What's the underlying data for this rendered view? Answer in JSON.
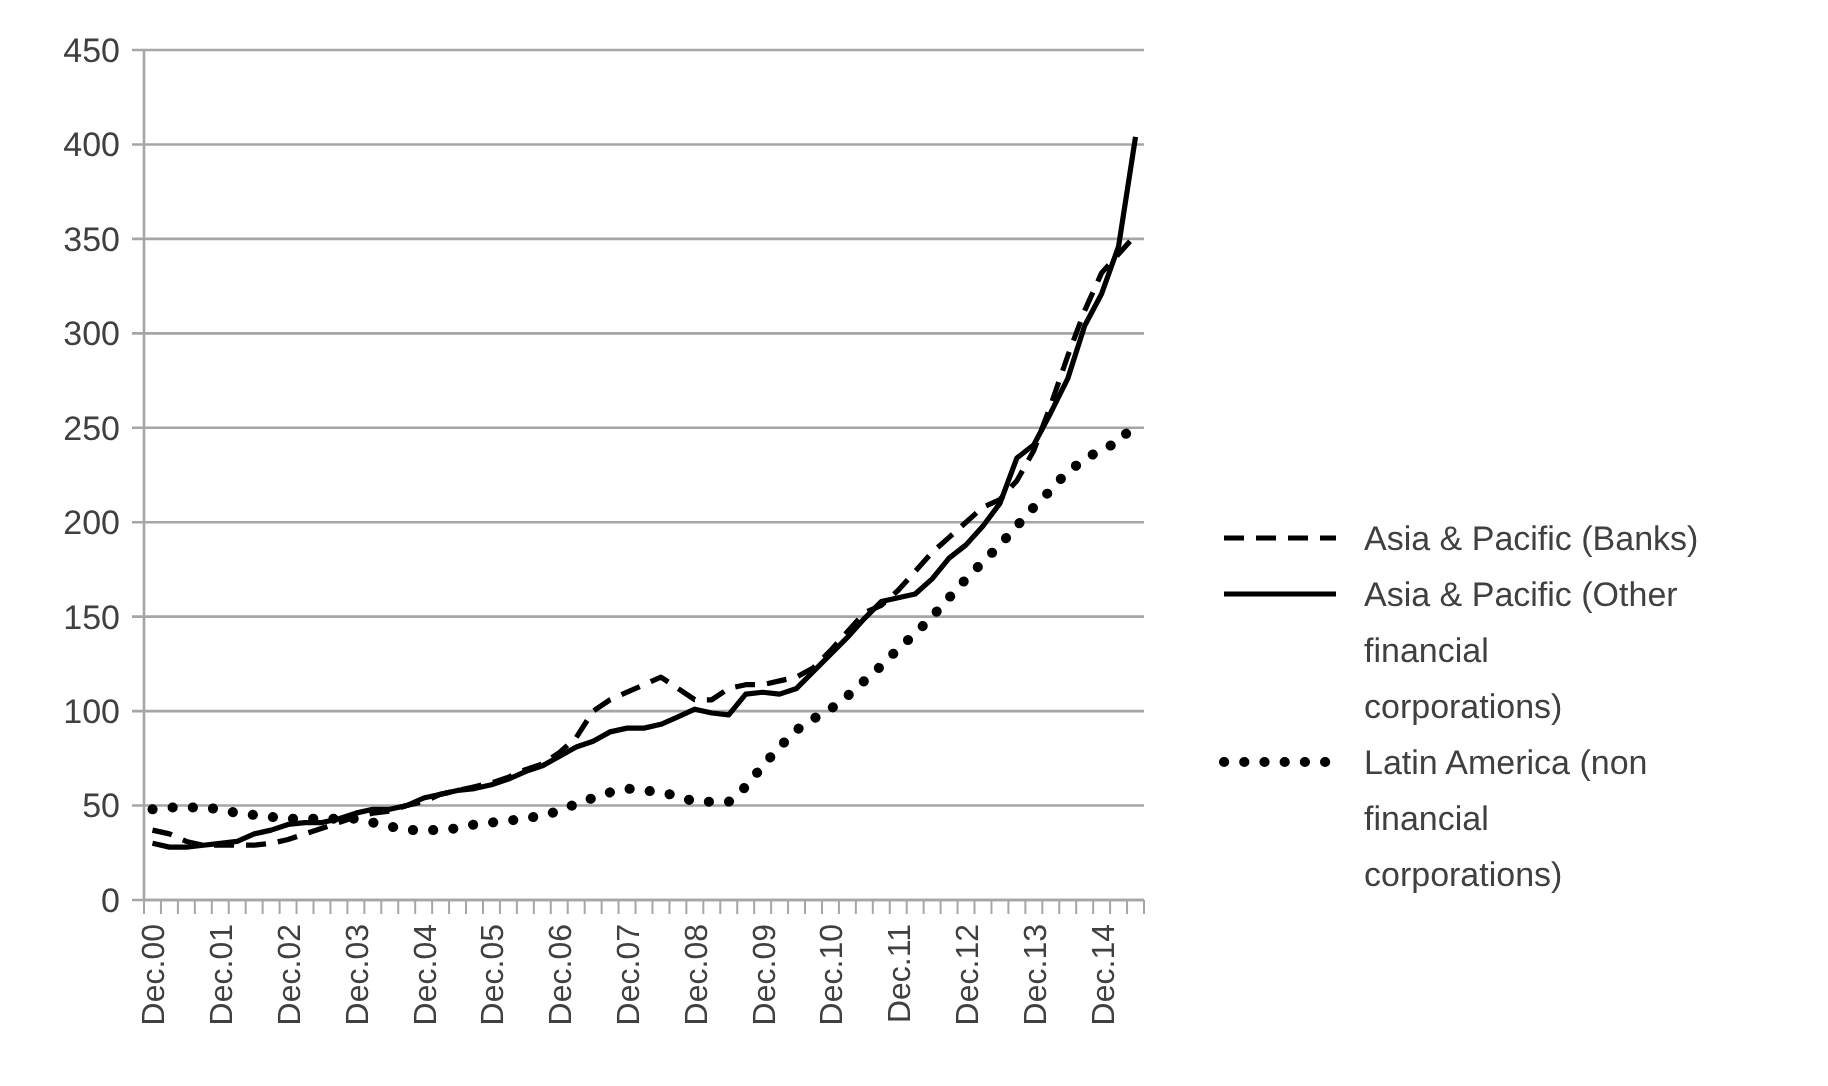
{
  "chart_data": {
    "type": "line",
    "categories": [
      "Dec.00",
      null,
      null,
      null,
      "Dec.01",
      null,
      null,
      null,
      "Dec.02",
      null,
      null,
      null,
      "Dec.03",
      null,
      null,
      null,
      "Dec.04",
      null,
      null,
      null,
      "Dec.05",
      null,
      null,
      null,
      "Dec.06",
      null,
      null,
      null,
      "Dec.07",
      null,
      null,
      null,
      "Dec.08",
      null,
      null,
      null,
      "Dec.09",
      null,
      null,
      null,
      "Dec.10",
      null,
      null,
      null,
      "Dec.11",
      null,
      null,
      null,
      "Dec.12",
      null,
      null,
      null,
      "Dec.13",
      null,
      null,
      null,
      "Dec.14",
      null,
      null
    ],
    "series": [
      {
        "name": "Asia & Pacific (Banks)",
        "color": "#000000",
        "line_style": "dashed",
        "values": [
          37,
          35,
          31,
          29,
          29,
          29,
          29,
          30,
          32,
          35,
          38,
          41,
          44,
          46,
          47,
          50,
          52,
          56,
          58,
          60,
          62,
          65,
          69,
          72,
          78,
          86,
          100,
          106,
          110,
          114,
          118,
          112,
          106,
          106,
          112,
          114,
          114,
          116,
          118,
          123,
          132,
          142,
          152,
          156,
          164,
          174,
          184,
          192,
          200,
          208,
          212,
          222,
          238,
          262,
          288,
          312,
          332,
          342,
          352
        ]
      },
      {
        "name": "Asia & Pacific (Other financial corporations)",
        "color": "#000000",
        "line_style": "solid",
        "values": [
          30,
          28,
          28,
          29,
          30,
          31,
          35,
          37,
          40,
          41,
          41,
          43,
          46,
          48,
          48,
          50,
          54,
          56,
          58,
          59,
          61,
          64,
          68,
          71,
          76,
          81,
          84,
          89,
          91,
          91,
          93,
          97,
          101,
          99,
          98,
          109,
          110,
          109,
          112,
          121,
          130,
          139,
          149,
          158,
          160,
          162,
          170,
          181,
          188,
          198,
          210,
          234,
          241,
          258,
          276,
          304,
          321,
          346,
          404
        ]
      },
      {
        "name": "Latin America (non financial corporations)",
        "color": "#000000",
        "line_style": "dotted",
        "values": [
          48,
          49,
          49,
          49,
          48,
          46,
          45,
          44,
          43,
          43,
          43,
          43,
          43,
          41,
          39,
          37,
          37,
          37,
          38,
          40,
          41,
          42,
          43,
          45,
          47,
          51,
          54,
          57,
          59,
          58,
          57,
          55,
          52,
          52,
          52,
          60,
          71,
          81,
          90,
          96,
          101,
          108,
          116,
          124,
          133,
          141,
          150,
          160,
          170,
          179,
          188,
          198,
          208,
          217,
          227,
          233,
          239,
          242,
          253
        ]
      }
    ],
    "ylim": [
      0,
      450
    ],
    "yticks": [
      0,
      50,
      100,
      150,
      200,
      250,
      300,
      350,
      400,
      450
    ],
    "grid": "y",
    "legend": "right"
  }
}
